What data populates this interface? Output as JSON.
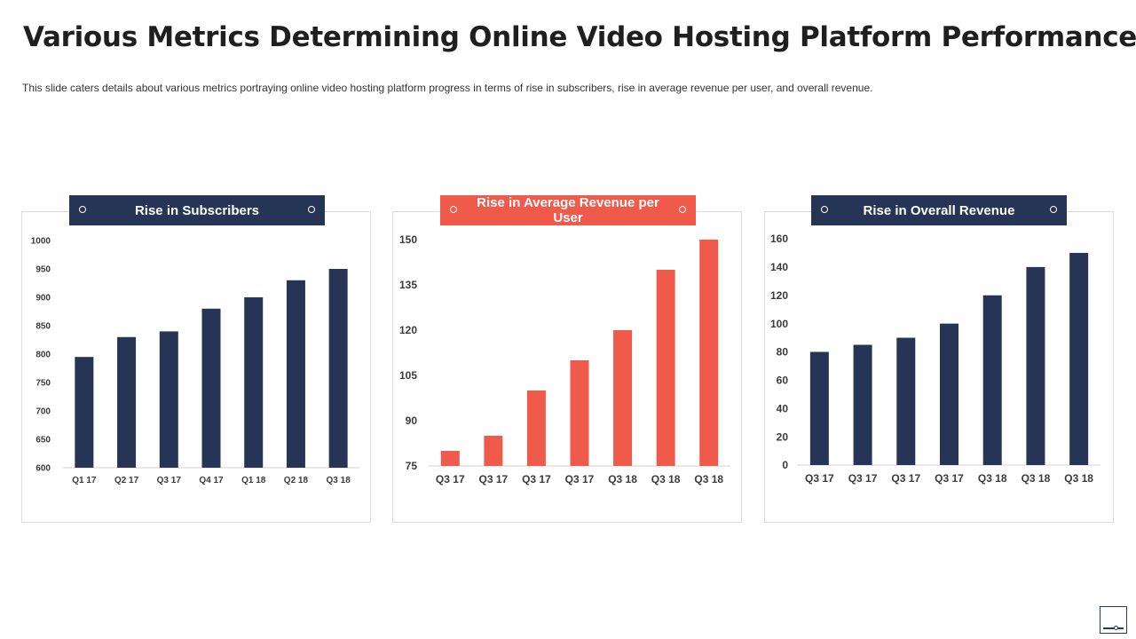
{
  "slide": {
    "title": "Various Metrics Determining Online Video Hosting Platform Performance",
    "subtitle": "This slide caters details about various  metrics portraying online video hosting platform progress  in terms of rise  in subscribers, rise in average  revenue  per user, and overall  revenue."
  },
  "colors": {
    "navy": "#263455",
    "coral": "#f05a4b",
    "axis": "#d0d0d0",
    "tick_text": "#3a3a3a"
  },
  "icons": {
    "banner_dots": "circle-outline-icon",
    "corner": "presentation-icon"
  },
  "chart_data": [
    {
      "type": "bar",
      "title": "Rise in Subscribers",
      "categories": [
        "Q1 17",
        "Q2 17",
        "Q3 17",
        "Q4 17",
        "Q1 18",
        "Q2 18",
        "Q3 18"
      ],
      "values": [
        795,
        830,
        840,
        880,
        900,
        930,
        950
      ],
      "ylim": [
        600,
        1000
      ],
      "yticks": [
        600,
        650,
        700,
        750,
        800,
        850,
        900,
        950,
        1000
      ],
      "xlabel": "",
      "ylabel": "",
      "grid": false,
      "legend": "none",
      "color": "#263455"
    },
    {
      "type": "bar",
      "title": "Rise in Average Revenue per User",
      "categories": [
        "Q3 17",
        "Q3 17",
        "Q3 17",
        "Q3 17",
        "Q3 18",
        "Q3 18",
        "Q3 18"
      ],
      "values": [
        80,
        85,
        100,
        110,
        120,
        140,
        150
      ],
      "ylim": [
        75,
        150
      ],
      "yticks": [
        75,
        90,
        105,
        120,
        135,
        150
      ],
      "xlabel": "",
      "ylabel": "",
      "grid": false,
      "legend": "none",
      "color": "#f05a4b"
    },
    {
      "type": "bar",
      "title": "Rise in Overall Revenue",
      "categories": [
        "Q3 17",
        "Q3 17",
        "Q3 17",
        "Q3 17",
        "Q3 18",
        "Q3 18",
        "Q3 18"
      ],
      "values": [
        80,
        85,
        90,
        100,
        120,
        140,
        150
      ],
      "ylim": [
        0,
        160
      ],
      "yticks": [
        0,
        20,
        40,
        60,
        80,
        100,
        120,
        140,
        160
      ],
      "xlabel": "",
      "ylabel": "",
      "grid": false,
      "legend": "none",
      "color": "#263455"
    }
  ]
}
